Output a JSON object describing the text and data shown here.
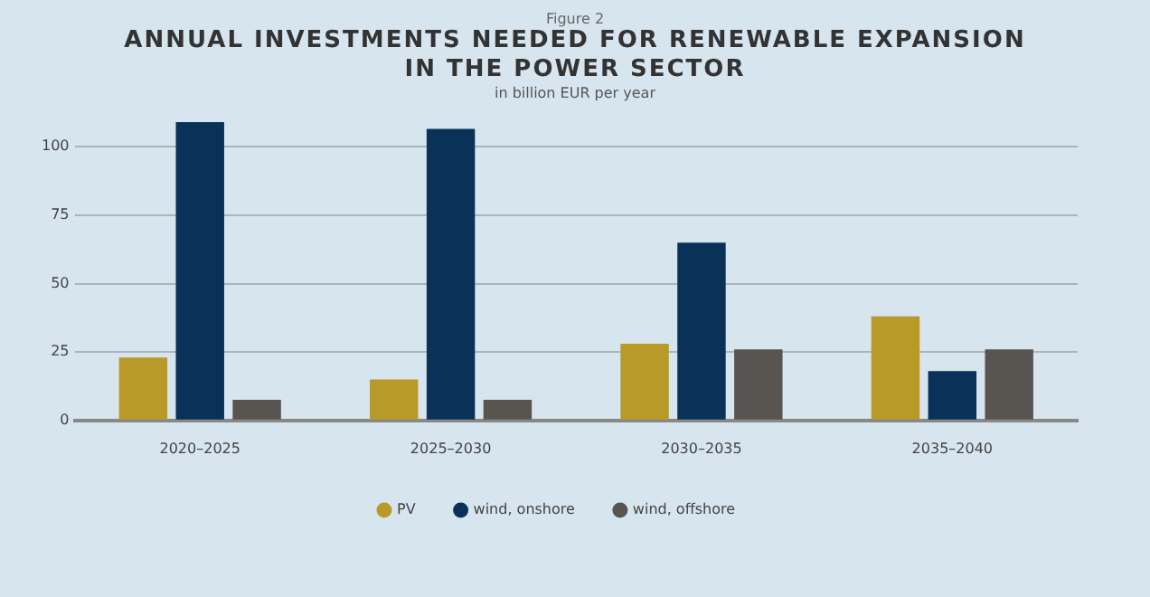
{
  "chart_data": {
    "type": "bar",
    "title": "ANNUAL INVESTMENTS NEEDED FOR RENEWABLE EXPANSION\nIN THE POWER SECTOR",
    "subtitle": "in billion EUR per year",
    "annotations": [
      "Figure 2"
    ],
    "categories": [
      "2020–2025",
      "2025–2030",
      "2030–2035",
      "2035–2040"
    ],
    "series": [
      {
        "name": "PV",
        "color": "#b99a29",
        "values": [
          23,
          15,
          28,
          38
        ]
      },
      {
        "name": "wind, onshore",
        "color": "#0a3157",
        "values": [
          109,
          106.5,
          65,
          18
        ]
      },
      {
        "name": "wind, offshore",
        "color": "#58544f",
        "values": [
          7.5,
          7.5,
          26,
          26
        ]
      }
    ],
    "ylim": [
      0,
      110
    ],
    "yticks": [
      0,
      25,
      50,
      75,
      100
    ],
    "grid": "y",
    "legend": "bottom"
  }
}
